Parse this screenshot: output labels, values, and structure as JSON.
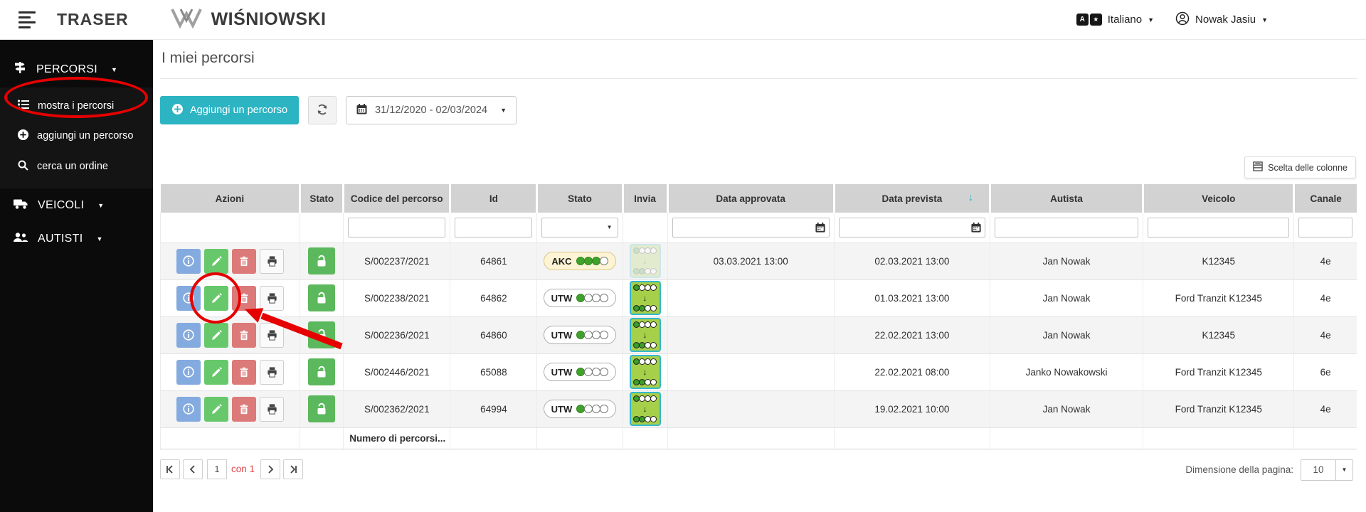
{
  "topbar": {
    "app_name": "TRASER",
    "brand": "WIŚNIOWSKI",
    "language": "Italiano",
    "user": "Nowak Jasiu"
  },
  "sidebar": {
    "sections": [
      {
        "label": "PERCORSI",
        "icon": "signpost-icon",
        "expanded": true,
        "items": [
          {
            "label": "mostra i percorsi",
            "icon": "list-icon",
            "highlighted": true
          },
          {
            "label": "aggiungi un percorso",
            "icon": "plus-circle-icon"
          },
          {
            "label": "cerca un ordine",
            "icon": "search-icon"
          }
        ]
      },
      {
        "label": "VEICOLI",
        "icon": "truck-icon"
      },
      {
        "label": "AUTISTI",
        "icon": "users-icon"
      }
    ]
  },
  "page": {
    "title": "I miei percorsi",
    "add_button_label": "Aggiungi un percorso",
    "date_range": "31/12/2020 - 02/03/2024",
    "column_chooser_label": "Scelta delle colonne"
  },
  "table": {
    "headers": [
      "Azioni",
      "Stato",
      "Codice del percorso",
      "Id",
      "Stato",
      "Invia",
      "Data approvata",
      "Data prevista",
      "Autista",
      "Veicolo",
      "Canale"
    ],
    "sort": {
      "column": "Data prevista",
      "direction": "desc",
      "arrow": "↓"
    },
    "actions": [
      "info",
      "edit",
      "delete",
      "print"
    ],
    "invia_icon": {
      "top_dots": [
        1,
        0,
        0,
        0
      ],
      "bottom_dots": [
        1,
        1,
        0,
        0
      ],
      "arrow": "↓"
    },
    "rows": [
      {
        "codice": "S/002237/2021",
        "id": "64861",
        "stato": "AKC",
        "stato_dots_filled": 3,
        "stato_dots_total": 4,
        "invia_enabled": false,
        "data_approvata": "03.03.2021 13:00",
        "data_approvata_red": true,
        "data_prevista": "02.03.2021 13:00",
        "autista": "Jan Nowak",
        "veicolo": "K12345",
        "canale": "4e"
      },
      {
        "codice": "S/002238/2021",
        "id": "64862",
        "stato": "UTW",
        "stato_dots_filled": 1,
        "stato_dots_total": 4,
        "invia_enabled": true,
        "data_approvata": "",
        "data_approvata_red": false,
        "data_prevista": "01.03.2021 13:00",
        "autista": "Jan Nowak",
        "veicolo": "Ford Tranzit K12345",
        "canale": "4e",
        "annotated": true
      },
      {
        "codice": "S/002236/2021",
        "id": "64860",
        "stato": "UTW",
        "stato_dots_filled": 1,
        "stato_dots_total": 4,
        "invia_enabled": true,
        "data_approvata": "",
        "data_approvata_red": false,
        "data_prevista": "22.02.2021 13:00",
        "autista": "Jan Nowak",
        "veicolo": "K12345",
        "canale": "4e"
      },
      {
        "codice": "S/002446/2021",
        "id": "65088",
        "stato": "UTW",
        "stato_dots_filled": 1,
        "stato_dots_total": 4,
        "invia_enabled": true,
        "data_approvata": "",
        "data_approvata_red": false,
        "data_prevista": "22.02.2021 08:00",
        "autista": "Janko Nowakowski",
        "veicolo": "Ford Tranzit K12345",
        "canale": "6e"
      },
      {
        "codice": "S/002362/2021",
        "id": "64994",
        "stato": "UTW",
        "stato_dots_filled": 1,
        "stato_dots_total": 4,
        "invia_enabled": true,
        "data_approvata": "",
        "data_approvata_red": false,
        "data_prevista": "19.02.2021 10:00",
        "autista": "Jan Nowak",
        "veicolo": "Ford Tranzit K12345",
        "canale": "4e"
      }
    ],
    "footer_label": "Numero di percorsi..."
  },
  "pagination": {
    "current_page": "1",
    "of_label": "con 1",
    "page_size_label": "Dimensione della pagina:",
    "page_size": "10"
  },
  "annotations": {
    "sidebar_highlight": "red ellipse around 'mostra i percorsi'",
    "row_action_highlight": "red circle and arrow pointing at edit button of row S/002238/2021"
  },
  "colors": {
    "accent_teal": "#2cb4c3",
    "annotation_red": "#e60000",
    "success_green": "#5cb85c",
    "invia_green": "#a6cf4a",
    "invia_border": "#35b6ce",
    "overdue_red": "#e2494f",
    "akc_badge_bg": "#fcf4d4",
    "header_gray": "#d2d2d2",
    "sidebar_black": "#0b0b0b"
  }
}
